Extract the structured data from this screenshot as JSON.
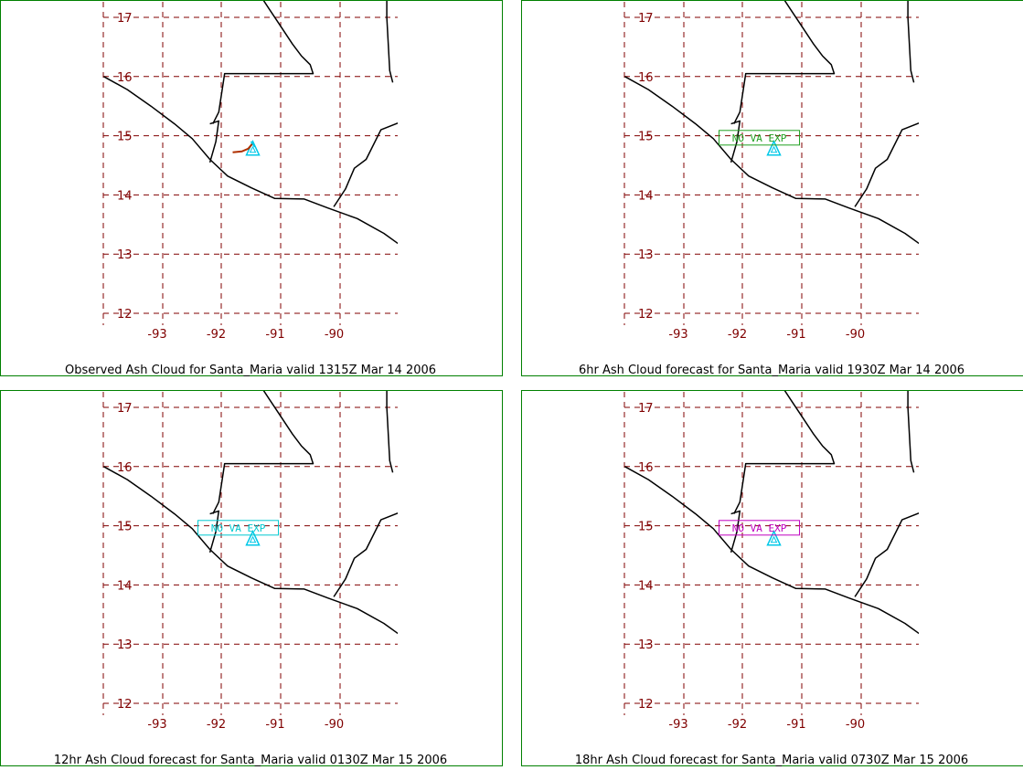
{
  "colors": {
    "panel_border": "#008000",
    "gridline": "#800000",
    "coastline": "#000000",
    "volcano": "#00c8e8",
    "observed_cloud": "#b03000",
    "forecast_6hr": "#20a020",
    "forecast_12hr": "#00c8d0",
    "forecast_18hr": "#c000c0"
  },
  "map": {
    "lat_ticks": [
      "17",
      "16",
      "15",
      "14",
      "13",
      "12"
    ],
    "lon_ticks": [
      "-93",
      "-92",
      "-91",
      "-90"
    ],
    "volcano_icon": "triangle-icon",
    "volcano_location": {
      "lat": 14.75,
      "lon": -91.55
    }
  },
  "panels": [
    {
      "caption": "Observed Ash Cloud for Santa_Maria valid 1315Z Mar 14 2006",
      "type": "observed",
      "label": null,
      "color_key": "observed_cloud"
    },
    {
      "caption": "6hr Ash Cloud forecast for Santa_Maria valid 1930Z Mar 14 2006",
      "type": "forecast",
      "label": "NO VA EXP",
      "color_key": "forecast_6hr"
    },
    {
      "caption": "12hr Ash Cloud forecast for Santa_Maria valid 0130Z Mar 15 2006",
      "type": "forecast",
      "label": "NO VA EXP",
      "color_key": "forecast_12hr"
    },
    {
      "caption": "18hr Ash Cloud forecast for Santa_Maria valid 0730Z Mar 15 2006",
      "type": "forecast",
      "label": "NO VA EXP",
      "color_key": "forecast_18hr"
    }
  ]
}
